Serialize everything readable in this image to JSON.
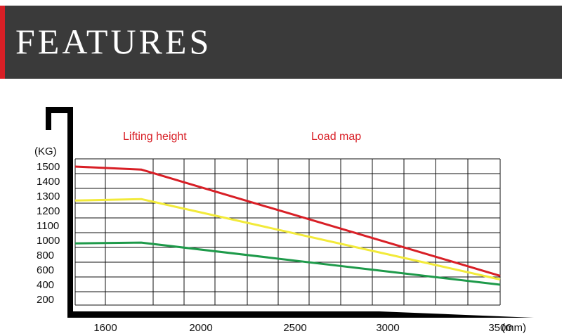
{
  "banner": {
    "title": "FEATURES",
    "background_color": "#3a3a3a",
    "accent_color": "#d81f26"
  },
  "chart_data": {
    "type": "line",
    "title": "",
    "annotations": [
      "Lifting height",
      "Load map"
    ],
    "annotation_color": "#d81f26",
    "xlabel": "(mm)",
    "ylabel": "(KG)",
    "x_ticks": [
      1600,
      2000,
      2500,
      3000,
      3500
    ],
    "y_ticks": [
      200,
      400,
      600,
      800,
      1000,
      1100,
      1200,
      1300,
      1400,
      1500
    ],
    "xlim": [
      1500,
      3500
    ],
    "ylim": [
      200,
      1500
    ],
    "grid": true,
    "series": [
      {
        "color": "#d81f26",
        "points": [
          [
            1500,
            1500
          ],
          [
            1750,
            1480
          ],
          [
            3500,
            520
          ]
        ]
      },
      {
        "color": "#f2ea3a",
        "points": [
          [
            1500,
            1270
          ],
          [
            1750,
            1280
          ],
          [
            3500,
            470
          ]
        ]
      },
      {
        "color": "#1e9a4a",
        "points": [
          [
            1500,
            960
          ],
          [
            1750,
            970
          ],
          [
            3500,
            400
          ]
        ]
      }
    ]
  }
}
